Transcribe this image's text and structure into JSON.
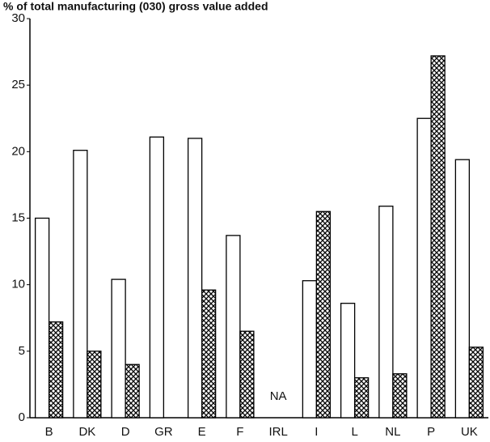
{
  "chart_data": {
    "type": "bar",
    "title": "% of total manufacturing (030) gross value added",
    "categories": [
      "B",
      "DK",
      "D",
      "GR",
      "E",
      "F",
      "IRL",
      "I",
      "L",
      "NL",
      "P",
      "UK"
    ],
    "series": [
      {
        "color": "#ffffff",
        "values": [
          15,
          20.1,
          10.4,
          21.1,
          21,
          13.7,
          null,
          10.3,
          8.6,
          15.9,
          22.5,
          19.4
        ]
      },
      {
        "color": "#000000",
        "hatch": "cross",
        "values": [
          7.2,
          5,
          4,
          null,
          9.6,
          6.5,
          null,
          15.5,
          3,
          3.3,
          27.2,
          5.3
        ]
      }
    ],
    "annotations": [
      {
        "text": "NA",
        "x": "IRL"
      }
    ],
    "ylim": [
      0,
      30
    ],
    "yticks": [
      0,
      5,
      10,
      15,
      20,
      25,
      30
    ],
    "grid": false
  }
}
